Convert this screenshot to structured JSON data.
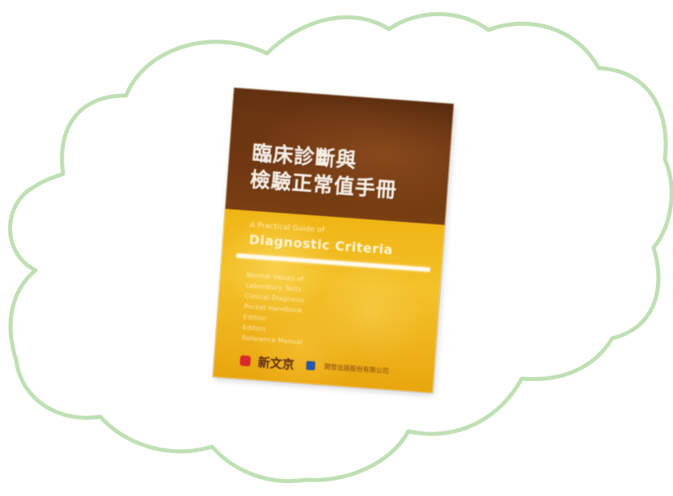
{
  "colors": {
    "cloud_stroke": "#bfe0b4",
    "cover_top": "#5a2d0f",
    "cover_bottom": "#f0b615",
    "title_text": "#f7efe6",
    "logo_red": "#d82a2a",
    "logo_blue": "#2b56a8"
  },
  "book": {
    "title_line1": "臨床診斷與",
    "title_line2": "檢驗正常值手冊",
    "subtitle_small": "A Practical Guide of",
    "subtitle_en": "Diagnostic Criteria",
    "detail_lines": [
      "Normal Values of",
      "Laboratory Tests",
      "Clinical Diagnosis",
      "Pocket Handbook",
      "Edition",
      "Editors",
      "Reference Manual"
    ],
    "publisher_name": "新文京",
    "publisher_text": "開發出版股份有限公司"
  }
}
